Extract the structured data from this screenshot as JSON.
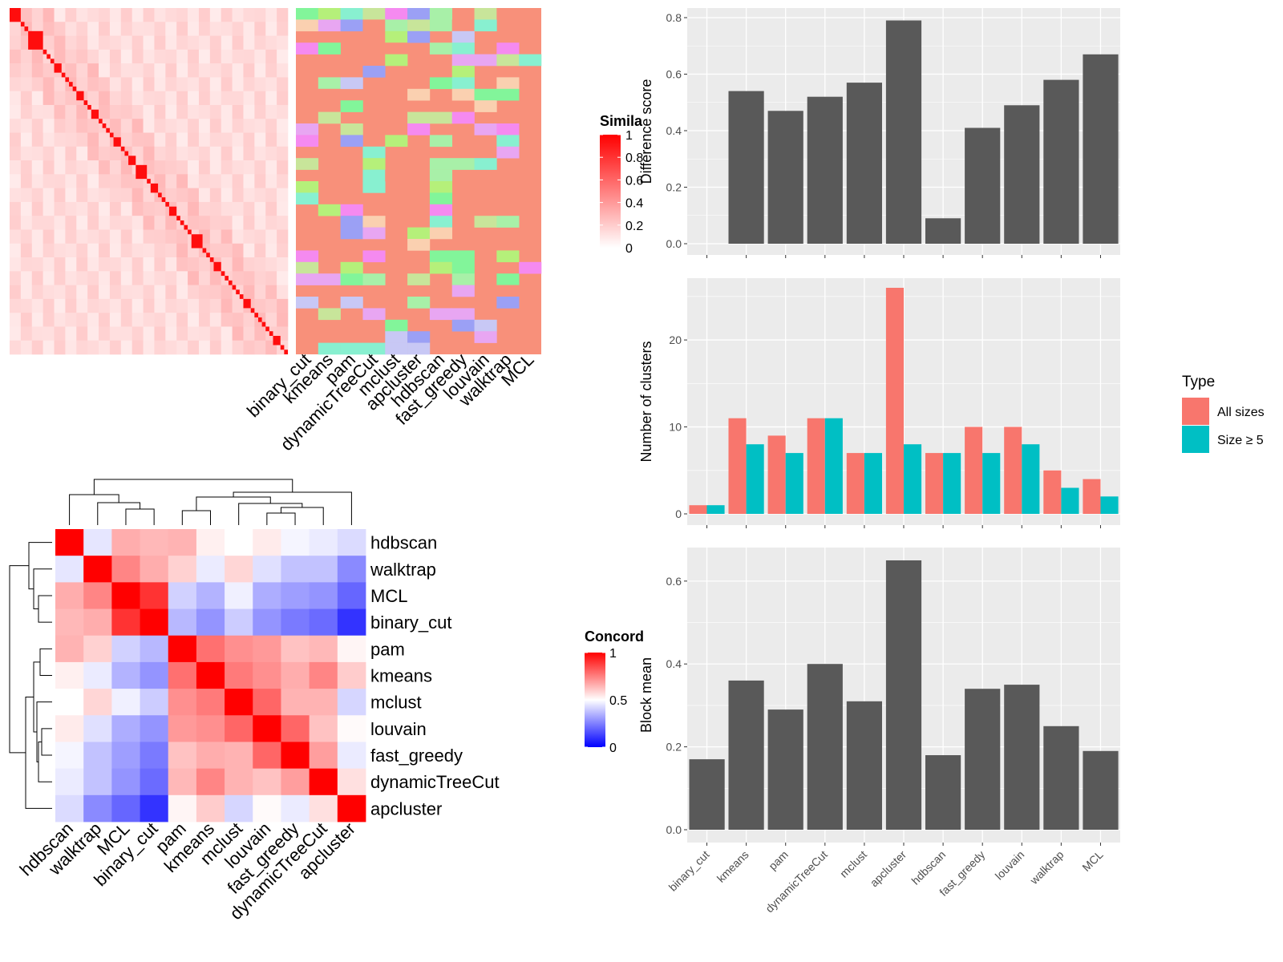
{
  "colors": {
    "panel_bg": "#ebebeb",
    "grid": "#ffffff",
    "bar_dark": "#595959",
    "all_sizes": "#f8766d",
    "size_ge5": "#00bfc4",
    "heat_high": "#ff0000",
    "heat_mid": "#ffffff",
    "heat_low": "#0000ff"
  },
  "chart_data": [
    {
      "type": "heatmap",
      "id": "similarity",
      "legend_title": "Simila",
      "legend_ticks": [
        "1",
        "0.8",
        "0.6",
        "0.4",
        "0.2",
        "0"
      ],
      "n_cells": 75,
      "column_labels": [
        "binary_cut",
        "kmeans",
        "pam",
        "dynamicTreeCut",
        "mclust",
        "apcluster",
        "hdbscan",
        "fast_greedy",
        "louvain",
        "walktrap",
        "MCL"
      ]
    },
    {
      "type": "heatmap",
      "id": "concordance",
      "legend_title": "Concord",
      "legend_ticks": [
        "1",
        "0.5",
        "0"
      ],
      "row_labels": [
        "hdbscan",
        "walktrap",
        "MCL",
        "binary_cut",
        "pam",
        "kmeans",
        "mclust",
        "louvain",
        "fast_greedy",
        "dynamicTreeCut",
        "apcluster"
      ],
      "col_labels": [
        "hdbscan",
        "walktrap",
        "MCL",
        "binary_cut",
        "pam",
        "kmeans",
        "mclust",
        "louvain",
        "fast_greedy",
        "dynamicTreeCut",
        "apcluster"
      ],
      "values": [
        [
          1.0,
          0.45,
          0.66,
          0.64,
          0.65,
          0.53,
          0.5,
          0.54,
          0.48,
          0.46,
          0.43
        ],
        [
          0.45,
          1.0,
          0.74,
          0.66,
          0.59,
          0.46,
          0.58,
          0.44,
          0.38,
          0.38,
          0.27
        ],
        [
          0.66,
          0.74,
          1.0,
          0.9,
          0.41,
          0.35,
          0.47,
          0.34,
          0.31,
          0.29,
          0.2
        ],
        [
          0.64,
          0.66,
          0.9,
          1.0,
          0.36,
          0.29,
          0.4,
          0.29,
          0.24,
          0.21,
          0.1
        ],
        [
          0.65,
          0.59,
          0.41,
          0.36,
          1.0,
          0.78,
          0.72,
          0.7,
          0.62,
          0.64,
          0.52
        ],
        [
          0.53,
          0.46,
          0.35,
          0.29,
          0.78,
          1.0,
          0.76,
          0.72,
          0.66,
          0.74,
          0.6
        ],
        [
          0.5,
          0.58,
          0.47,
          0.4,
          0.72,
          0.76,
          1.0,
          0.8,
          0.65,
          0.65,
          0.42
        ],
        [
          0.54,
          0.44,
          0.34,
          0.29,
          0.7,
          0.72,
          0.8,
          1.0,
          0.8,
          0.62,
          0.51
        ],
        [
          0.48,
          0.38,
          0.31,
          0.24,
          0.62,
          0.66,
          0.65,
          0.8,
          1.0,
          0.69,
          0.46
        ],
        [
          0.46,
          0.38,
          0.29,
          0.21,
          0.64,
          0.74,
          0.65,
          0.62,
          0.69,
          1.0,
          0.56
        ],
        [
          0.43,
          0.27,
          0.2,
          0.1,
          0.52,
          0.6,
          0.42,
          0.51,
          0.46,
          0.56,
          1.0
        ]
      ]
    },
    {
      "type": "bar",
      "id": "difference",
      "ylabel": "Difference score",
      "categories": [
        "binary_cut",
        "kmeans",
        "pam",
        "dynamicTreeCut",
        "mclust",
        "apcluster",
        "hdbscan",
        "fast_greedy",
        "louvain",
        "walktrap",
        "MCL"
      ],
      "values": [
        0.0,
        0.54,
        0.47,
        0.52,
        0.57,
        0.79,
        0.09,
        0.41,
        0.49,
        0.58,
        0.67
      ],
      "ylim": [
        0,
        0.8
      ],
      "yticks": [
        "0.0",
        "0.2",
        "0.4",
        "0.6",
        "0.8"
      ]
    },
    {
      "type": "bar",
      "id": "clusters",
      "ylabel": "Number of clusters",
      "categories": [
        "binary_cut",
        "kmeans",
        "pam",
        "dynamicTreeCut",
        "mclust",
        "apcluster",
        "hdbscan",
        "fast_greedy",
        "louvain",
        "walktrap",
        "MCL"
      ],
      "series": [
        {
          "name": "All sizes",
          "values": [
            1,
            11,
            9,
            11,
            7,
            26,
            7,
            10,
            10,
            5,
            4
          ]
        },
        {
          "name": "Size ≥ 5",
          "values": [
            1,
            8,
            7,
            11,
            7,
            8,
            7,
            7,
            8,
            3,
            2
          ]
        }
      ],
      "legend_title": "Type",
      "legend_position": "right",
      "ylim": [
        0,
        26
      ],
      "yticks": [
        "0",
        "10",
        "20"
      ]
    },
    {
      "type": "bar",
      "id": "blockmean",
      "ylabel": "Block mean",
      "categories": [
        "binary_cut",
        "kmeans",
        "pam",
        "dynamicTreeCut",
        "mclust",
        "apcluster",
        "hdbscan",
        "fast_greedy",
        "louvain",
        "walktrap",
        "MCL"
      ],
      "values": [
        0.17,
        0.36,
        0.29,
        0.4,
        0.31,
        0.65,
        0.18,
        0.34,
        0.35,
        0.25,
        0.19
      ],
      "ylim": [
        0,
        0.65
      ],
      "yticks": [
        "0.0",
        "0.2",
        "0.4",
        "0.6"
      ]
    }
  ]
}
